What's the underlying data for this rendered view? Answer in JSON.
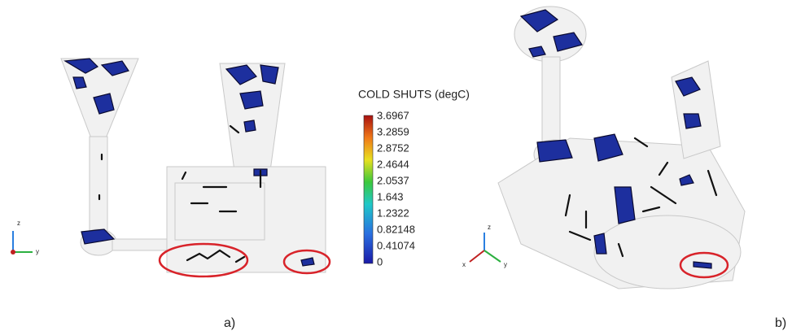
{
  "legend": {
    "title": "COLD SHUTS (degC)",
    "labels": [
      3.6967,
      3.2859,
      2.8752,
      2.4644,
      2.0537,
      1.643,
      1.2322,
      0.82148,
      0.41074,
      0
    ]
  },
  "panels": [
    {
      "label": "a)",
      "axes": [
        "z",
        "y"
      ]
    },
    {
      "label": "b)",
      "axes": [
        "z",
        "x",
        "y"
      ]
    }
  ]
}
